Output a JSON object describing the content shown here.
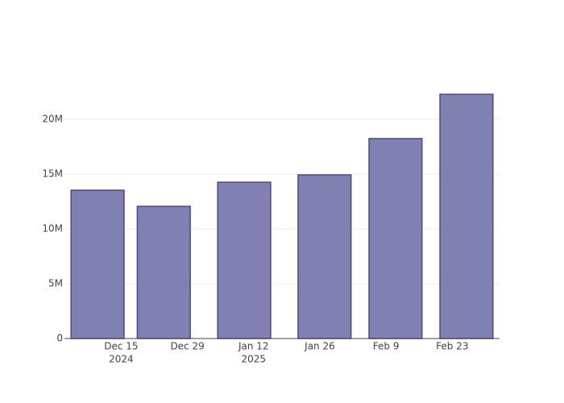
{
  "chart_data": {
    "type": "bar",
    "x": [
      "2024-12-10",
      "2024-12-24",
      "2025-01-10",
      "2025-01-27",
      "2025-02-11",
      "2025-02-26"
    ],
    "values": [
      13530000,
      12060000,
      14260000,
      14930000,
      18240000,
      22280000
    ],
    "color": "#8080b2",
    "edge_color": "#4a4a80",
    "xlim": [
      "2024-12-03",
      "2025-03-05"
    ],
    "xticks": [
      {
        "value": "2024-12-15",
        "label": "Dec 15",
        "sublabel": "2024"
      },
      {
        "value": "2024-12-29",
        "label": "Dec 29"
      },
      {
        "value": "2025-01-12",
        "label": "Jan 12",
        "sublabel": "2025"
      },
      {
        "value": "2025-01-26",
        "label": "Jan 26"
      },
      {
        "value": "2025-02-09",
        "label": "Feb 9"
      },
      {
        "value": "2025-02-23",
        "label": "Feb 23"
      }
    ],
    "ylim": [
      0,
      23530000
    ],
    "yticks": [
      0,
      {
        "value": 5000000,
        "label": "5M"
      },
      {
        "value": 10000000,
        "label": "10M"
      },
      {
        "value": 15000000,
        "label": "15M"
      },
      {
        "value": 20000000,
        "label": "20M"
      }
    ],
    "grid": true
  }
}
